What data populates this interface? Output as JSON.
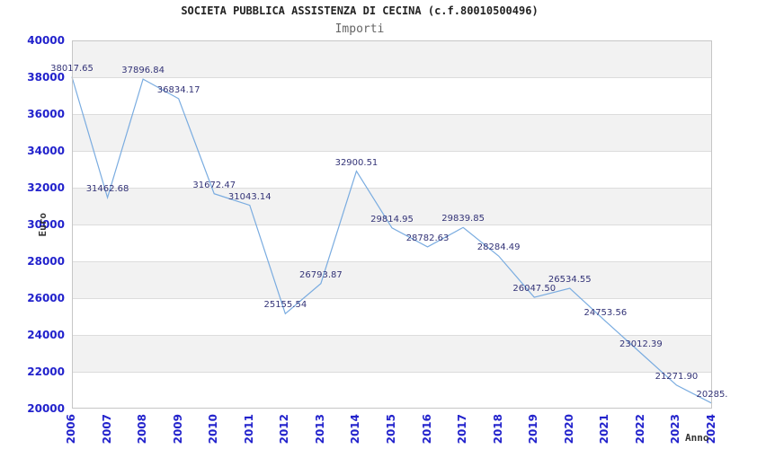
{
  "chart_data": {
    "type": "line",
    "title": "SOCIETA PUBBLICA ASSISTENZA DI CECINA (c.f.80010500496)",
    "subtitle": "Importi",
    "xlabel": "Anno",
    "ylabel": "Euro",
    "x": [
      2006,
      2007,
      2008,
      2009,
      2010,
      2011,
      2012,
      2013,
      2014,
      2015,
      2016,
      2017,
      2018,
      2019,
      2020,
      2021,
      2022,
      2023,
      2024
    ],
    "values": [
      38017.65,
      31462.68,
      37896.84,
      36834.17,
      31672.47,
      31043.14,
      25155.54,
      26793.87,
      32900.51,
      29814.95,
      28782.63,
      29839.85,
      28284.49,
      26047.5,
      26534.55,
      24753.56,
      23012.39,
      21271.9,
      20285
    ],
    "point_labels": [
      "38017.65",
      "31462.68",
      "37896.84",
      "36834.17",
      "31672.47",
      "31043.14",
      "25155.54",
      "26793.87",
      "32900.51",
      "29814.95",
      "28782.63",
      "29839.85",
      "28284.49",
      "26047.50",
      "26534.55",
      "24753.56",
      "23012.39",
      "21271.90",
      "20285."
    ],
    "ylim": [
      20000,
      40000
    ],
    "ytick_step": 2000,
    "yticks": [
      "40000",
      "38000",
      "36000",
      "34000",
      "32000",
      "30000",
      "28000",
      "26000",
      "24000",
      "22000",
      "20000"
    ],
    "grid": "horizontal-bands",
    "legend": "none",
    "colors": {
      "line": "#7aace0",
      "tick_label": "#2222cc",
      "point_label": "#333377",
      "band": "#f2f2f2",
      "band_alt": "#ffffff",
      "gridline": "#dcdcdc",
      "plot_border": "#c6c6c6",
      "title": "#222222",
      "subtitle": "#666666",
      "axis_title": "#333333"
    }
  }
}
